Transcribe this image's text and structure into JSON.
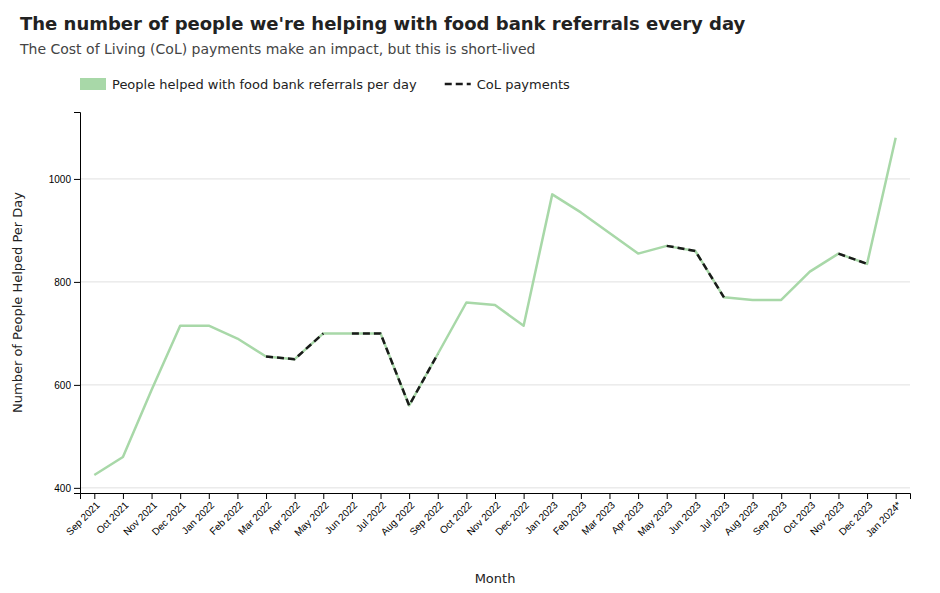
{
  "chart_data": {
    "type": "line",
    "title": "The number of people we're helping with food bank referrals every day",
    "subtitle": "The Cost of Living (CoL) payments make an impact, but this is short-lived",
    "x_label": "Month",
    "y_label": "Number of People Helped Per Day",
    "categories": [
      "Sep 2021",
      "Oct 2021",
      "Nov 2021",
      "Dec 2021",
      "Jan 2022",
      "Feb 2022",
      "Mar 2022",
      "Apr 2022",
      "May 2022",
      "Jun 2022",
      "Jul 2022",
      "Aug 2022",
      "Sep 2022",
      "Oct 2022",
      "Nov 2022",
      "Dec 2022",
      "Jan 2023",
      "Feb 2023",
      "Mar 2023",
      "Apr 2023",
      "May 2023",
      "Jun 2023",
      "Jul 2023",
      "Aug 2023",
      "Sep 2023",
      "Oct 2023",
      "Nov 2023",
      "Dec 2023",
      "Jan 2024*"
    ],
    "series": [
      {
        "name": "People helped with food bank referrals per day",
        "color": "#a8d8a8",
        "line_style": "solid",
        "values": [
          425,
          460,
          590,
          715,
          715,
          690,
          655,
          650,
          700,
          700,
          700,
          560,
          660,
          760,
          755,
          715,
          970,
          935,
          895,
          855,
          870,
          860,
          770,
          765,
          765,
          820,
          855,
          835,
          1080
        ]
      },
      {
        "name": "CoL payments",
        "color": "#1a1a1a",
        "line_style": "dashed",
        "segments": [
          {
            "start": "Mar 2022",
            "end": "May 2022"
          },
          {
            "start": "Jun 2022",
            "end": "Sep 2022"
          },
          {
            "start": "May 2023",
            "end": "Jul 2023"
          },
          {
            "start": "Nov 2023",
            "end": "Dec 2023"
          }
        ]
      }
    ],
    "ylim": [
      390,
      1130
    ],
    "yticks": [
      400,
      600,
      800,
      1000
    ],
    "grid": true,
    "legend": "upper left"
  }
}
